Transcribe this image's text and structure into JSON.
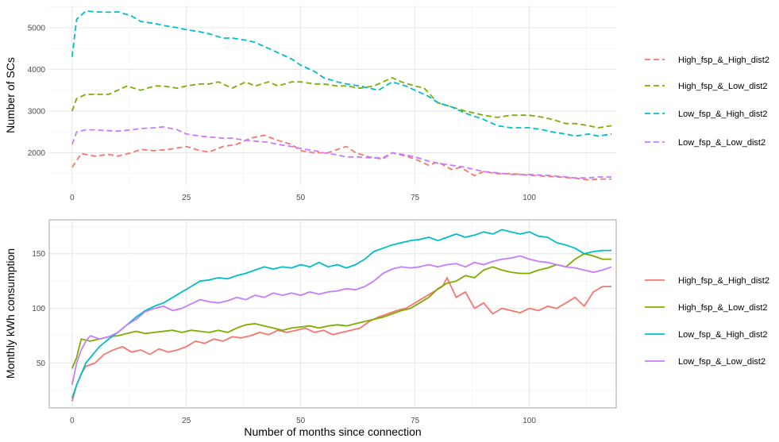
{
  "chart_data": [
    {
      "type": "line",
      "ylabel": "Number of SCs",
      "xlabel": "",
      "xlim": [
        -5,
        119
      ],
      "ylim": [
        1230,
        5530
      ],
      "xticks": [
        0,
        25,
        50,
        75,
        100
      ],
      "yticks": [
        2000,
        3000,
        4000,
        5000
      ],
      "line_style": "dashed",
      "panel_border": false,
      "legend_position": "right",
      "series": [
        {
          "name": "High_fsp_&_High_dist2",
          "color": "#F8766D",
          "x": [
            0,
            2,
            5,
            8,
            10,
            13,
            15,
            18,
            21,
            25,
            28,
            30,
            33,
            36,
            39,
            42,
            45,
            48,
            50,
            53,
            56,
            58,
            60,
            62,
            65,
            68,
            70,
            73,
            75,
            78,
            80,
            83,
            85,
            88,
            90,
            93,
            96,
            100,
            105,
            110,
            113,
            115,
            118
          ],
          "y": [
            1650,
            1980,
            1920,
            1960,
            1920,
            2000,
            2080,
            2050,
            2080,
            2150,
            2050,
            2020,
            2150,
            2200,
            2350,
            2420,
            2300,
            2200,
            2050,
            2000,
            2000,
            2080,
            2150,
            2000,
            1900,
            1850,
            2000,
            1920,
            1850,
            1700,
            1780,
            1600,
            1650,
            1450,
            1550,
            1500,
            1500,
            1460,
            1430,
            1390,
            1350,
            1370,
            1370
          ]
        },
        {
          "name": "High_fsp_&_Low_dist2",
          "color": "#7CAE00",
          "x": [
            0,
            1,
            3,
            5,
            8,
            10,
            12,
            15,
            18,
            20,
            23,
            25,
            28,
            30,
            32,
            35,
            38,
            40,
            43,
            45,
            48,
            50,
            53,
            55,
            58,
            60,
            63,
            66,
            68,
            70,
            72,
            75,
            77,
            80,
            83,
            86,
            90,
            93,
            96,
            100,
            103,
            105,
            108,
            110,
            113,
            115,
            118
          ],
          "y": [
            3000,
            3300,
            3400,
            3400,
            3400,
            3500,
            3600,
            3500,
            3600,
            3600,
            3550,
            3600,
            3650,
            3650,
            3700,
            3550,
            3700,
            3600,
            3700,
            3600,
            3700,
            3700,
            3650,
            3650,
            3600,
            3600,
            3550,
            3600,
            3700,
            3800,
            3700,
            3600,
            3550,
            3200,
            3100,
            3000,
            2900,
            2850,
            2900,
            2900,
            2850,
            2800,
            2700,
            2700,
            2650,
            2600,
            2650
          ]
        },
        {
          "name": "Low_fsp_&_High_dist2",
          "color": "#00BFC4",
          "x": [
            0,
            1,
            3,
            5,
            8,
            10,
            13,
            15,
            18,
            20,
            23,
            25,
            28,
            30,
            33,
            35,
            38,
            40,
            43,
            45,
            48,
            50,
            53,
            55,
            58,
            60,
            63,
            65,
            67,
            70,
            73,
            75,
            78,
            80,
            83,
            86,
            90,
            93,
            96,
            100,
            103,
            105,
            108,
            110,
            113,
            115,
            118
          ],
          "y": [
            4300,
            5200,
            5400,
            5380,
            5370,
            5380,
            5280,
            5150,
            5100,
            5050,
            5000,
            4950,
            4900,
            4850,
            4750,
            4750,
            4700,
            4650,
            4500,
            4400,
            4250,
            4100,
            3950,
            3800,
            3700,
            3650,
            3600,
            3550,
            3500,
            3700,
            3600,
            3500,
            3350,
            3200,
            3100,
            2950,
            2800,
            2650,
            2600,
            2600,
            2550,
            2500,
            2450,
            2400,
            2450,
            2400,
            2450
          ]
        },
        {
          "name": "Low_fsp_&_Low_dist2",
          "color": "#C77CFF",
          "x": [
            0,
            1,
            3,
            5,
            8,
            10,
            13,
            15,
            18,
            20,
            23,
            25,
            28,
            30,
            33,
            35,
            38,
            40,
            43,
            45,
            48,
            50,
            53,
            55,
            58,
            60,
            63,
            65,
            68,
            70,
            73,
            75,
            78,
            80,
            83,
            86,
            88,
            90,
            93,
            96,
            100,
            105,
            110,
            113,
            115,
            118
          ],
          "y": [
            2200,
            2500,
            2550,
            2550,
            2530,
            2520,
            2550,
            2580,
            2600,
            2620,
            2550,
            2450,
            2400,
            2380,
            2350,
            2350,
            2300,
            2280,
            2250,
            2200,
            2150,
            2100,
            2050,
            2000,
            1950,
            1900,
            1900,
            1880,
            1880,
            2000,
            1950,
            1900,
            1800,
            1750,
            1700,
            1650,
            1600,
            1550,
            1520,
            1480,
            1480,
            1450,
            1400,
            1400,
            1420,
            1420
          ]
        }
      ]
    },
    {
      "type": "line",
      "ylabel": "Monthly kWh consumption",
      "xlabel": "Number of months since connection",
      "xlim": [
        -5,
        119
      ],
      "ylim": [
        9,
        181
      ],
      "xticks": [
        0,
        25,
        50,
        75,
        100
      ],
      "yticks": [
        50,
        100,
        150
      ],
      "line_style": "solid",
      "panel_border": true,
      "legend_position": "right",
      "series": [
        {
          "name": "High_fsp_&_High_dist2",
          "color": "#F8766D",
          "x": [
            0,
            1,
            2,
            3,
            5,
            7,
            9,
            11,
            13,
            15,
            17,
            19,
            21,
            23,
            25,
            27,
            29,
            31,
            33,
            35,
            37,
            39,
            41,
            43,
            45,
            47,
            49,
            51,
            53,
            55,
            57,
            59,
            61,
            63,
            65,
            67,
            69,
            71,
            73,
            75,
            77,
            79,
            81,
            82,
            84,
            86,
            88,
            90,
            92,
            94,
            96,
            98,
            100,
            102,
            104,
            106,
            108,
            110,
            112,
            114,
            116,
            118
          ],
          "y": [
            15,
            30,
            40,
            47,
            50,
            58,
            62,
            65,
            60,
            62,
            58,
            63,
            60,
            62,
            65,
            70,
            68,
            72,
            70,
            74,
            73,
            75,
            78,
            76,
            80,
            78,
            80,
            82,
            78,
            80,
            76,
            78,
            80,
            82,
            88,
            92,
            95,
            98,
            100,
            105,
            110,
            115,
            120,
            128,
            110,
            115,
            100,
            105,
            95,
            100,
            98,
            96,
            100,
            98,
            102,
            100,
            105,
            110,
            102,
            115,
            120,
            120
          ]
        },
        {
          "name": "High_fsp_&_Low_dist2",
          "color": "#7CAE00",
          "x": [
            0,
            1,
            2,
            4,
            6,
            8,
            10,
            12,
            14,
            16,
            18,
            20,
            22,
            24,
            26,
            28,
            30,
            32,
            34,
            36,
            38,
            40,
            42,
            44,
            46,
            48,
            50,
            52,
            54,
            56,
            58,
            60,
            62,
            64,
            66,
            68,
            70,
            72,
            74,
            76,
            78,
            80,
            82,
            84,
            86,
            88,
            90,
            92,
            94,
            96,
            98,
            100,
            102,
            104,
            106,
            108,
            110,
            112,
            114,
            116,
            118
          ],
          "y": [
            45,
            55,
            72,
            70,
            72,
            74,
            75,
            77,
            79,
            77,
            78,
            79,
            80,
            78,
            80,
            79,
            78,
            80,
            78,
            82,
            85,
            86,
            84,
            82,
            80,
            82,
            83,
            84,
            82,
            84,
            85,
            84,
            86,
            88,
            90,
            92,
            95,
            98,
            100,
            105,
            110,
            118,
            123,
            125,
            130,
            128,
            135,
            138,
            135,
            133,
            132,
            132,
            135,
            137,
            140,
            138,
            145,
            150,
            148,
            145,
            145
          ]
        },
        {
          "name": "Low_fsp_&_High_dist2",
          "color": "#00BFC4",
          "x": [
            0,
            1,
            2,
            3,
            4,
            6,
            8,
            10,
            12,
            14,
            16,
            18,
            20,
            22,
            24,
            26,
            28,
            30,
            32,
            34,
            36,
            38,
            40,
            42,
            44,
            46,
            48,
            50,
            52,
            54,
            56,
            58,
            60,
            62,
            64,
            66,
            68,
            70,
            72,
            74,
            76,
            78,
            80,
            82,
            84,
            86,
            88,
            90,
            92,
            94,
            96,
            98,
            100,
            102,
            104,
            106,
            108,
            110,
            112,
            114,
            116,
            118
          ],
          "y": [
            18,
            30,
            40,
            50,
            55,
            65,
            72,
            78,
            85,
            92,
            98,
            102,
            105,
            110,
            115,
            120,
            125,
            126,
            128,
            127,
            130,
            132,
            135,
            138,
            136,
            138,
            137,
            140,
            138,
            142,
            138,
            140,
            137,
            140,
            145,
            152,
            155,
            158,
            160,
            162,
            163,
            165,
            162,
            165,
            168,
            165,
            167,
            170,
            168,
            172,
            170,
            168,
            170,
            166,
            165,
            160,
            158,
            155,
            150,
            152,
            153,
            153
          ]
        },
        {
          "name": "Low_fsp_&_Low_dist2",
          "color": "#C77CFF",
          "x": [
            0,
            1,
            2,
            3,
            4,
            6,
            8,
            10,
            12,
            14,
            16,
            18,
            20,
            22,
            24,
            26,
            28,
            30,
            32,
            34,
            36,
            38,
            40,
            42,
            44,
            46,
            48,
            50,
            52,
            54,
            56,
            58,
            60,
            62,
            64,
            66,
            68,
            70,
            72,
            74,
            76,
            78,
            80,
            82,
            84,
            86,
            88,
            90,
            92,
            94,
            96,
            98,
            100,
            102,
            104,
            106,
            108,
            110,
            112,
            114,
            116,
            118
          ],
          "y": [
            30,
            50,
            62,
            70,
            75,
            72,
            74,
            78,
            85,
            90,
            97,
            100,
            102,
            98,
            100,
            104,
            108,
            106,
            105,
            107,
            110,
            108,
            112,
            110,
            114,
            112,
            114,
            112,
            115,
            113,
            115,
            116,
            118,
            117,
            120,
            125,
            132,
            136,
            138,
            137,
            138,
            140,
            138,
            140,
            141,
            138,
            142,
            140,
            143,
            145,
            146,
            148,
            145,
            143,
            142,
            140,
            138,
            137,
            135,
            133,
            135,
            138
          ]
        }
      ]
    }
  ]
}
